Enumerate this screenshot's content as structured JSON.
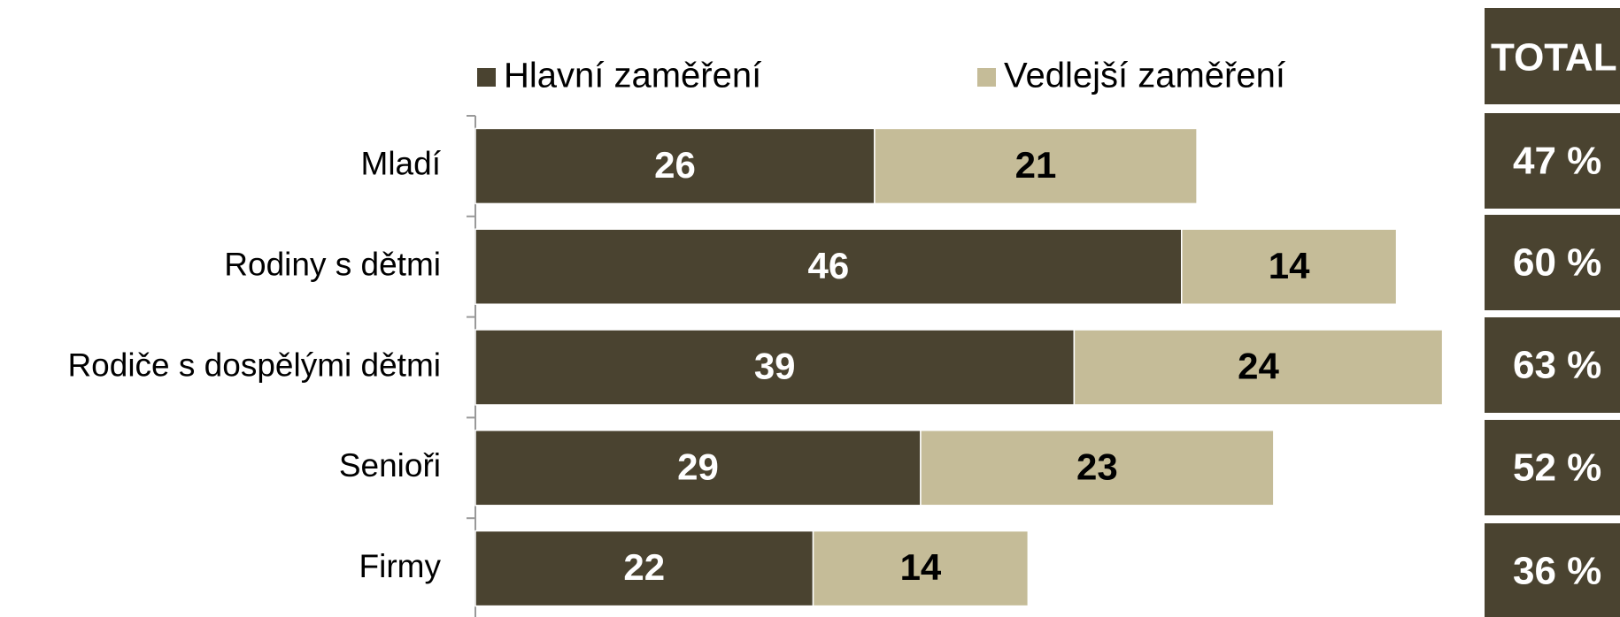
{
  "chart_data": {
    "type": "stacked-barh",
    "categories": [
      "Mladí",
      "Rodiny s dětmi",
      "Rodiče s dospělými dětmi",
      "Senioři",
      "Firmy"
    ],
    "series": [
      {
        "name": "Hlavní zaměření",
        "color": "#4a4330",
        "label_color": "#ffffff",
        "values": [
          26,
          46,
          39,
          29,
          22
        ]
      },
      {
        "name": "Vedlejší zaměření",
        "color": "#c5bc98",
        "label_color": "#000000",
        "values": [
          21,
          14,
          24,
          23,
          14
        ]
      }
    ],
    "xlim": [
      0,
      70
    ],
    "totals": {
      "header": "TOTAL",
      "color": "#4a4330",
      "values": [
        47,
        60,
        63,
        52,
        36
      ],
      "value_labels": [
        "47 %",
        "60 %",
        "63 %",
        "52 %",
        "36 %"
      ]
    }
  }
}
